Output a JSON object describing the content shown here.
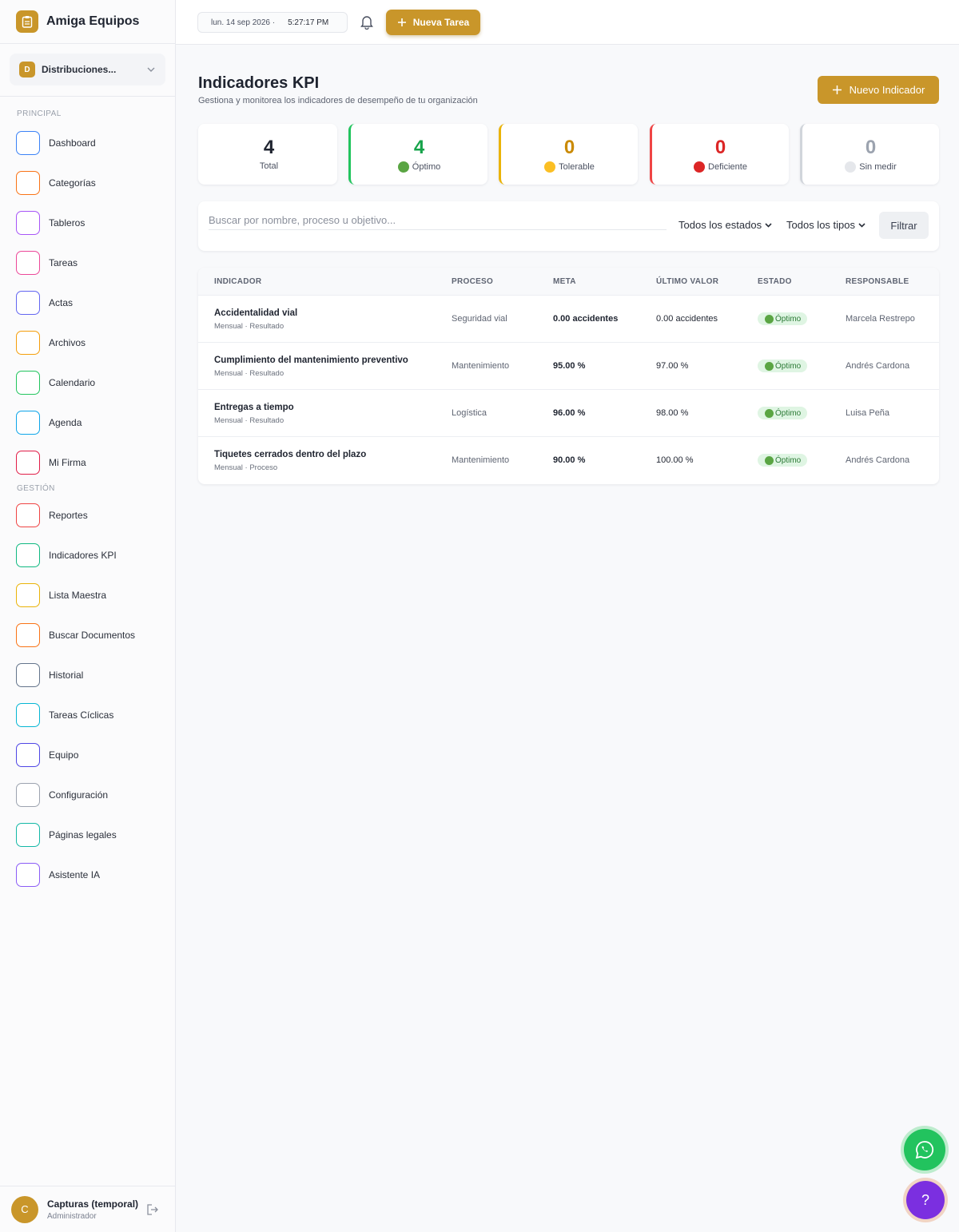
{
  "brand": {
    "name": "Amiga Equipos",
    "icon": "clipboard-icon"
  },
  "org": {
    "initial": "D",
    "name": "Distribuciones..."
  },
  "sidebar": {
    "section_principal": "PRINCIPAL",
    "section_gestion": "GESTIÓN",
    "principal": [
      {
        "label": "Dashboard",
        "color": "#3b82f6"
      },
      {
        "label": "Categorías",
        "color": "#f97316"
      },
      {
        "label": "Tableros",
        "color": "#a855f7"
      },
      {
        "label": "Tareas",
        "color": "#ec4899"
      },
      {
        "label": "Actas",
        "color": "#6366f1"
      },
      {
        "label": "Archivos",
        "color": "#f59e0b"
      },
      {
        "label": "Calendario",
        "color": "#22c55e"
      },
      {
        "label": "Agenda",
        "color": "#0ea5e9"
      },
      {
        "label": "Mi Firma",
        "color": "#e11d48"
      }
    ],
    "gestion": [
      {
        "label": "Reportes",
        "color": "#ef4444"
      },
      {
        "label": "Indicadores KPI",
        "color": "#10b981"
      },
      {
        "label": "Lista Maestra",
        "color": "#eab308"
      },
      {
        "label": "Buscar Documentos",
        "color": "#f97316"
      },
      {
        "label": "Historial",
        "color": "#64748b"
      },
      {
        "label": "Tareas Cíclicas",
        "color": "#06b6d4"
      },
      {
        "label": "Equipo",
        "color": "#4f46e5"
      },
      {
        "label": "Configuración",
        "color": "#9ca3af"
      },
      {
        "label": "Páginas legales",
        "color": "#14b8a6"
      },
      {
        "label": "Asistente IA",
        "color": "#8b5cf6"
      }
    ]
  },
  "user": {
    "initial": "C",
    "name": "Capturas (temporal)",
    "role": "Administrador"
  },
  "topbar": {
    "date": "lun. 14 sep 2026 ·",
    "time": "5:27:17 PM",
    "new_task": "Nueva Tarea"
  },
  "page": {
    "title": "Indicadores KPI",
    "subtitle": "Gestiona y monitorea los indicadores de desempeño de tu organización",
    "new_indicator": "Nuevo Indicador"
  },
  "stats": [
    {
      "value": "4",
      "label": "Total",
      "color": "#1f2430",
      "border": "transparent",
      "dot": ""
    },
    {
      "value": "4",
      "label": "Óptimo",
      "color": "#16a34a",
      "border": "#22c55e",
      "dot": "#5aa543"
    },
    {
      "value": "0",
      "label": "Tolerable",
      "color": "#ca8a04",
      "border": "#eab308",
      "dot": "#fbbf24"
    },
    {
      "value": "0",
      "label": "Deficiente",
      "color": "#dc2626",
      "border": "#ef4444",
      "dot": "#dc2626"
    },
    {
      "value": "0",
      "label": "Sin medir",
      "color": "#9ca3af",
      "border": "#d1d5db",
      "dot": "#e5e7eb"
    }
  ],
  "filters": {
    "search_placeholder": "Buscar por nombre, proceso u objetivo...",
    "status_select": "Todos los estados",
    "type_select": "Todos los tipos",
    "filter_button": "Filtrar"
  },
  "table": {
    "headers": [
      "INDICADOR",
      "PROCESO",
      "META",
      "ÚLTIMO VALOR",
      "ESTADO",
      "RESPONSABLE"
    ],
    "rows": [
      {
        "name": "Accidentalidad vial",
        "sub": "Mensual · Resultado",
        "process": "Seguridad vial",
        "meta": "0.00 accidentes",
        "last": "0.00 accidentes",
        "status": "Óptimo",
        "owner": "Marcela Restrepo"
      },
      {
        "name": "Cumplimiento del mantenimiento preventivo",
        "sub": "Mensual · Resultado",
        "process": "Mantenimiento",
        "meta": "95.00 %",
        "last": "97.00 %",
        "status": "Óptimo",
        "owner": "Andrés Cardona"
      },
      {
        "name": "Entregas a tiempo",
        "sub": "Mensual · Resultado",
        "process": "Logística",
        "meta": "96.00 %",
        "last": "98.00 %",
        "status": "Óptimo",
        "owner": "Luisa Peña"
      },
      {
        "name": "Tiquetes cerrados dentro del plazo",
        "sub": "Mensual · Proceso",
        "process": "Mantenimiento",
        "meta": "90.00 %",
        "last": "100.00 %",
        "status": "Óptimo",
        "owner": "Andrés Cardona"
      }
    ]
  },
  "fab": {
    "help": "?"
  },
  "colors": {
    "accent": "#c9962a",
    "success": "#22c55e"
  }
}
